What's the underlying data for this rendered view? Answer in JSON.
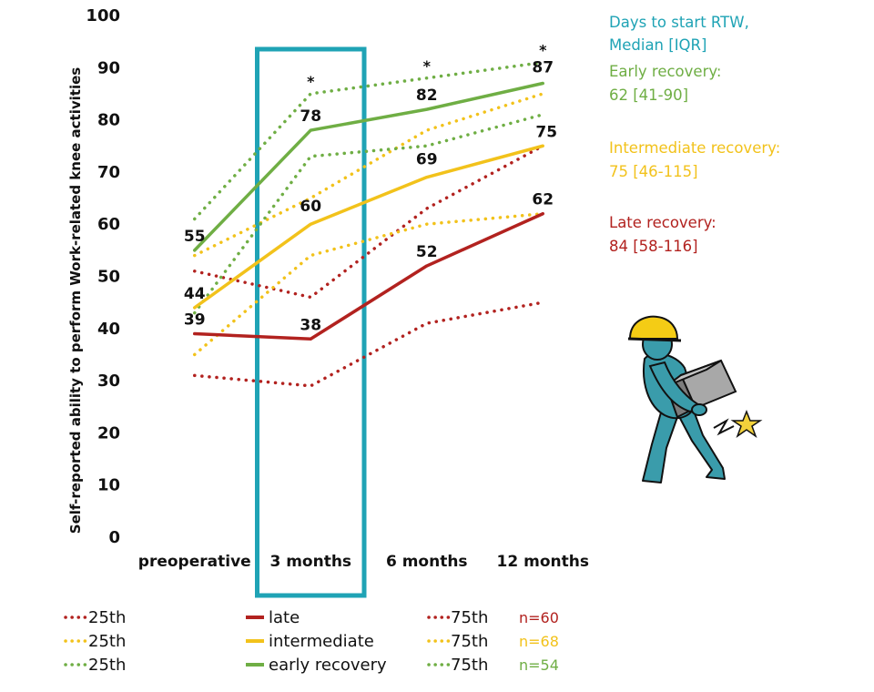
{
  "chart_data": {
    "type": "line",
    "title": "",
    "xlabel": "",
    "ylabel": "Self-reported ability to perform Work-related knee activities",
    "ylim": [
      0,
      100
    ],
    "yticks": [
      "0",
      "10",
      "20",
      "30",
      "40",
      "50",
      "60",
      "70",
      "80",
      "90",
      "100"
    ],
    "categories": [
      "preoperative",
      "3 months",
      "6 months",
      "12 months"
    ],
    "highlight_category": "3 months",
    "significance_markers": [
      "*",
      "*",
      "*"
    ],
    "series": [
      {
        "group": "late",
        "stat": "25th",
        "style": "dotted",
        "color": "#b2221f",
        "values": [
          31,
          29,
          41,
          45
        ]
      },
      {
        "group": "late",
        "stat": "median",
        "style": "solid",
        "color": "#b2221f",
        "values": [
          39,
          38,
          52,
          62
        ],
        "labels": [
          "39",
          "38",
          "52",
          "62"
        ]
      },
      {
        "group": "late",
        "stat": "75th",
        "style": "dotted",
        "color": "#b2221f",
        "values": [
          51,
          46,
          63,
          75
        ]
      },
      {
        "group": "intermediate",
        "stat": "25th",
        "style": "dotted",
        "color": "#f2c21b",
        "values": [
          35,
          54,
          60,
          62
        ]
      },
      {
        "group": "intermediate",
        "stat": "median",
        "style": "solid",
        "color": "#f2c21b",
        "values": [
          44,
          60,
          69,
          75
        ],
        "labels": [
          "44",
          "60",
          "69",
          "75"
        ]
      },
      {
        "group": "intermediate",
        "stat": "75th",
        "style": "dotted",
        "color": "#f2c21b",
        "values": [
          54,
          65,
          78,
          85
        ]
      },
      {
        "group": "early",
        "stat": "25th",
        "style": "dotted",
        "color": "#6fae44",
        "values": [
          43,
          73,
          75,
          81
        ]
      },
      {
        "group": "early",
        "stat": "median",
        "style": "solid",
        "color": "#6fae44",
        "values": [
          55,
          78,
          82,
          87
        ],
        "labels": [
          "55",
          "78",
          "82",
          "87"
        ]
      },
      {
        "group": "early",
        "stat": "75th",
        "style": "dotted",
        "color": "#6fae44",
        "values": [
          61,
          85,
          88,
          91
        ]
      }
    ],
    "legend": {
      "placement": "bottom",
      "rows": [
        {
          "color": "#b2221f",
          "p25": "25th",
          "median": "late",
          "p75": "75th",
          "n": "n=60"
        },
        {
          "color": "#f2c21b",
          "p25": "25th",
          "median": "intermediate",
          "p75": "75th",
          "n": "n=68"
        },
        {
          "color": "#6fae44",
          "p25": "25th",
          "median": "early   recovery",
          "p75": "75th",
          "n": "n=54"
        }
      ]
    },
    "side_text": {
      "header_line1": "Days to start RTW,",
      "header_line2": "Median [IQR]",
      "header_color": "#1fa3b5",
      "groups": [
        {
          "name": "Early recovery:",
          "value": "62 [41-90]",
          "color": "#6fae44"
        },
        {
          "name": "Intermediate recovery:",
          "value": "75 [46-115]",
          "color": "#f2c21b"
        },
        {
          "name": "Late recovery:",
          "value": "84 [58-116]",
          "color": "#b2221f"
        }
      ]
    },
    "colors": {
      "highlight_box": "#1fa3b5",
      "worker_body": "#3a9cab",
      "helmet": "#f4cc15",
      "box": "#9c9c9c",
      "star": "#f2d13b"
    },
    "illustration": "worker-carrying-box-knee-injury"
  }
}
